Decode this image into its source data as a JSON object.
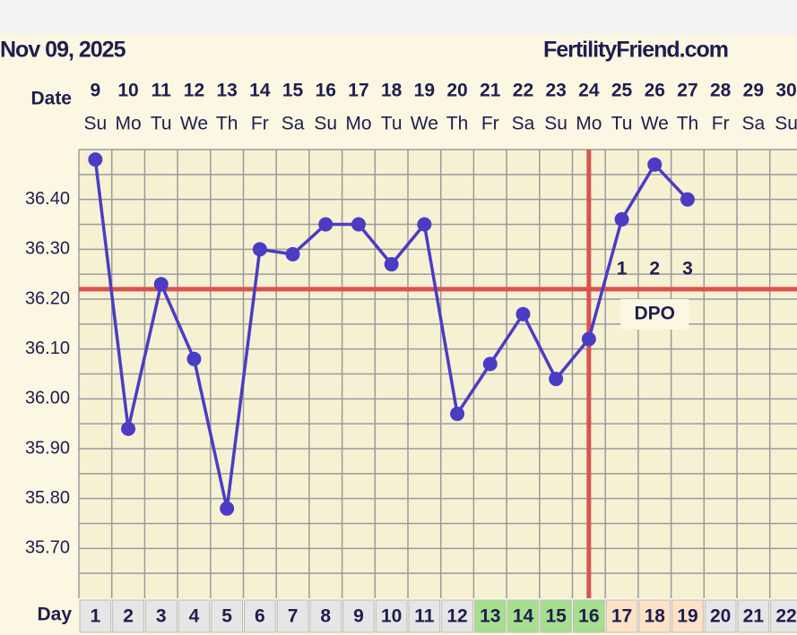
{
  "chart_data": {
    "type": "line",
    "title": "Nov 09, 2025",
    "source": "FertilityFriend.com",
    "date_label": "Date",
    "categories": [
      9,
      10,
      11,
      12,
      13,
      14,
      15,
      16,
      17,
      18,
      19,
      20,
      21,
      22,
      23,
      24,
      25,
      26,
      27,
      28,
      29,
      30
    ],
    "weekdays": [
      "Su",
      "Mo",
      "Tu",
      "We",
      "Th",
      "Fr",
      "Sa",
      "Su",
      "Mo",
      "Tu",
      "We",
      "Th",
      "Fr",
      "Sa",
      "Su",
      "Mo",
      "Tu",
      "We",
      "Th",
      "Fr",
      "Sa",
      "Su"
    ],
    "day_label": "Day",
    "cycle_days": [
      1,
      2,
      3,
      4,
      5,
      6,
      7,
      8,
      9,
      10,
      11,
      12,
      13,
      14,
      15,
      16,
      17,
      18,
      19,
      20,
      21,
      22
    ],
    "day_colors": [
      "#e6e6e6",
      "#e6e6e6",
      "#e6e6e6",
      "#e6e6e6",
      "#e6e6e6",
      "#e6e6e6",
      "#e6e6e6",
      "#e6e6e6",
      "#e6e6e6",
      "#e6e6e6",
      "#e6e6e6",
      "#e6e6e6",
      "#a6df8e",
      "#a6df8e",
      "#a6df8e",
      "#a6df8e",
      "#fde2c6",
      "#fde2c6",
      "#fde2c6",
      "#e6e6e6",
      "#e6e6e6",
      "#e6e6e6"
    ],
    "values": [
      36.48,
      35.94,
      36.23,
      36.08,
      35.78,
      36.3,
      36.29,
      36.35,
      36.35,
      36.27,
      36.35,
      35.97,
      36.07,
      36.17,
      36.04,
      36.12,
      36.36,
      36.47,
      36.4,
      null,
      null,
      null
    ],
    "color": "#4b3cc4",
    "ylim": [
      35.6,
      36.5
    ],
    "yticks": [
      {
        "value": 35.7,
        "label": "35.70"
      },
      {
        "value": 35.8,
        "label": "35.80"
      },
      {
        "value": 35.9,
        "label": "35.90"
      },
      {
        "value": 36.0,
        "label": "36.00"
      },
      {
        "value": 36.1,
        "label": "36.10"
      },
      {
        "value": 36.2,
        "label": "36.20"
      },
      {
        "value": 36.3,
        "label": "36.30"
      },
      {
        "value": 36.4,
        "label": "36.40"
      }
    ],
    "ygrid": [
      35.65,
      35.7,
      35.75,
      35.8,
      35.85,
      35.9,
      35.95,
      36.0,
      36.05,
      36.1,
      36.15,
      36.2,
      36.25,
      36.3,
      36.35,
      36.4,
      36.45,
      36.5
    ],
    "grid": true,
    "coverline": 36.22,
    "coverline_color": "#d9534f",
    "ovulation_day": 16,
    "dpo": {
      "label": "DPO",
      "start_day": 17,
      "values": [
        1,
        2,
        3
      ]
    }
  }
}
